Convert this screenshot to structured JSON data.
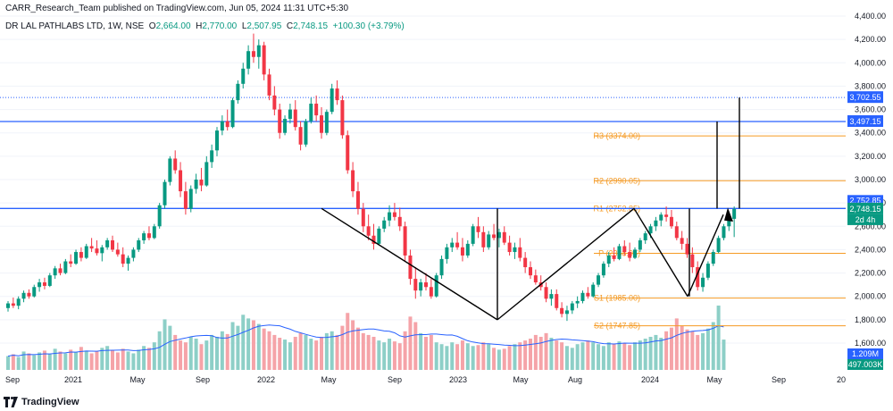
{
  "header": {
    "published": "CARR_Research_Team published on TradingView.com, Jun 05, 2024 11:31 UTC+5:30",
    "symbol": "DR LAL PATHLABS LTD, 1W, NSE",
    "o_label": "O",
    "o_value": "2,664.00",
    "h_label": "H",
    "h_value": "2,770.00",
    "l_label": "L",
    "l_value": "2,507.95",
    "c_label": "C",
    "c_value": "2,748.15",
    "change": "+100.30 (+3.79%)"
  },
  "footer": {
    "brand": "TradingView"
  },
  "colors": {
    "up": "#089981",
    "down": "#f23645",
    "blue": "#2962ff",
    "orange": "#f59a23",
    "volUp": "#8dcfc7",
    "volDown": "#f5a3a8"
  },
  "chart_data": {
    "type": "candlestick",
    "x_ticks": [
      "Sep",
      "2021",
      "May",
      "Sep",
      "2022",
      "May",
      "Sep",
      "2023",
      "May",
      "Aug",
      "2024",
      "May",
      "Sep",
      "20"
    ],
    "y_ticks": [
      4400,
      4200,
      4000,
      3800,
      3600,
      3400,
      3200,
      3000,
      2800,
      2600,
      2400,
      2200,
      2000,
      1800,
      1600
    ],
    "y_tick_labels": [
      "4,400.00",
      "4,200.00",
      "4,000.00",
      "3,800.00",
      "3,600.00",
      "3,400.00",
      "3,200.00",
      "3,000.00",
      "2,800.00",
      "2,600.00",
      "2,400.00",
      "2,200.00",
      "2,000.00",
      "1,800.00",
      "1,600.00"
    ],
    "ylim": [
      1400,
      4420
    ],
    "horizontal_lines": [
      {
        "price": 3497.15,
        "label": "3,497.15",
        "style": "solid",
        "color": "#2962ff"
      },
      {
        "price": 2752.85,
        "label": "2,752.85",
        "style": "solid",
        "color": "#2962ff"
      },
      {
        "price": 3702.55,
        "label": "3,702.55",
        "style": "dotted",
        "color": "#2962ff"
      }
    ],
    "pivots": [
      {
        "name": "R3",
        "price": 3374.0,
        "label": "R3 (3374.00)"
      },
      {
        "name": "R2",
        "price": 2990.05,
        "label": "R2 (2990.05)"
      },
      {
        "name": "R1",
        "price": 2752.85,
        "label": "R1 (2752.85)"
      },
      {
        "name": "P",
        "price": 2368.95,
        "label": "P (2368.95)"
      },
      {
        "name": "S1",
        "price": 1985.0,
        "label": "S1 (1985.00)"
      },
      {
        "name": "S2",
        "price": 1747.85,
        "label": "S2 (1747.85)"
      }
    ],
    "last_price": {
      "value": 2748.15,
      "label": "2,748.15",
      "countdown": "2d 4h"
    },
    "volume_labels": [
      {
        "label": "1.209M"
      },
      {
        "label": "497.003K"
      }
    ],
    "ohlc": [
      [
        1900,
        1960,
        1870,
        1940
      ],
      [
        1940,
        1990,
        1900,
        1920
      ],
      [
        1920,
        2000,
        1890,
        1980
      ],
      [
        1980,
        2050,
        1950,
        2030
      ],
      [
        2030,
        2060,
        1980,
        2000
      ],
      [
        2000,
        2100,
        1990,
        2080
      ],
      [
        2080,
        2150,
        2040,
        2120
      ],
      [
        2120,
        2160,
        2060,
        2090
      ],
      [
        2090,
        2200,
        2080,
        2180
      ],
      [
        2180,
        2260,
        2150,
        2240
      ],
      [
        2240,
        2280,
        2180,
        2200
      ],
      [
        2200,
        2320,
        2190,
        2300
      ],
      [
        2300,
        2360,
        2250,
        2280
      ],
      [
        2280,
        2400,
        2270,
        2380
      ],
      [
        2380,
        2420,
        2300,
        2330
      ],
      [
        2330,
        2450,
        2320,
        2430
      ],
      [
        2430,
        2500,
        2380,
        2410
      ],
      [
        2410,
        2480,
        2350,
        2370
      ],
      [
        2370,
        2440,
        2300,
        2420
      ],
      [
        2420,
        2500,
        2400,
        2480
      ],
      [
        2480,
        2520,
        2380,
        2400
      ],
      [
        2400,
        2460,
        2340,
        2360
      ],
      [
        2360,
        2420,
        2250,
        2280
      ],
      [
        2280,
        2350,
        2220,
        2330
      ],
      [
        2330,
        2420,
        2300,
        2400
      ],
      [
        2400,
        2500,
        2380,
        2480
      ],
      [
        2480,
        2560,
        2450,
        2540
      ],
      [
        2540,
        2600,
        2480,
        2500
      ],
      [
        2500,
        2620,
        2490,
        2600
      ],
      [
        2600,
        2800,
        2580,
        2780
      ],
      [
        2780,
        3000,
        2750,
        2980
      ],
      [
        2980,
        3200,
        2950,
        3180
      ],
      [
        3180,
        3250,
        3050,
        3080
      ],
      [
        3080,
        3150,
        2850,
        2900
      ],
      [
        2900,
        2980,
        2700,
        2750
      ],
      [
        2750,
        2950,
        2720,
        2920
      ],
      [
        2920,
        3050,
        2880,
        3000
      ],
      [
        3000,
        3100,
        2900,
        2950
      ],
      [
        2950,
        3200,
        2940,
        3150
      ],
      [
        3150,
        3300,
        3100,
        3250
      ],
      [
        3250,
        3450,
        3200,
        3420
      ],
      [
        3420,
        3550,
        3380,
        3500
      ],
      [
        3500,
        3600,
        3420,
        3450
      ],
      [
        3450,
        3700,
        3440,
        3680
      ],
      [
        3680,
        3850,
        3650,
        3820
      ],
      [
        3820,
        4000,
        3780,
        3950
      ],
      [
        3950,
        4150,
        3900,
        4100
      ],
      [
        4100,
        4250,
        4000,
        4050
      ],
      [
        4050,
        4200,
        3950,
        4150
      ],
      [
        4150,
        4180,
        3850,
        3900
      ],
      [
        3900,
        3950,
        3680,
        3720
      ],
      [
        3720,
        3800,
        3550,
        3600
      ],
      [
        3600,
        3650,
        3350,
        3400
      ],
      [
        3400,
        3550,
        3380,
        3520
      ],
      [
        3520,
        3650,
        3480,
        3600
      ],
      [
        3600,
        3680,
        3420,
        3450
      ],
      [
        3450,
        3500,
        3250,
        3300
      ],
      [
        3300,
        3520,
        3280,
        3500
      ],
      [
        3500,
        3700,
        3480,
        3650
      ],
      [
        3650,
        3720,
        3500,
        3550
      ],
      [
        3550,
        3620,
        3350,
        3400
      ],
      [
        3400,
        3600,
        3380,
        3580
      ],
      [
        3580,
        3820,
        3560,
        3780
      ],
      [
        3780,
        3850,
        3640,
        3680
      ],
      [
        3680,
        3720,
        3350,
        3380
      ],
      [
        3380,
        3420,
        3050,
        3080
      ],
      [
        3080,
        3150,
        2850,
        2900
      ],
      [
        2900,
        2980,
        2700,
        2750
      ],
      [
        2750,
        2800,
        2550,
        2600
      ],
      [
        2600,
        2700,
        2480,
        2520
      ],
      [
        2520,
        2620,
        2400,
        2450
      ],
      [
        2450,
        2600,
        2440,
        2580
      ],
      [
        2580,
        2680,
        2550,
        2650
      ],
      [
        2650,
        2780,
        2600,
        2720
      ],
      [
        2720,
        2800,
        2650,
        2680
      ],
      [
        2680,
        2760,
        2560,
        2600
      ],
      [
        2600,
        2640,
        2300,
        2350
      ],
      [
        2350,
        2400,
        2100,
        2150
      ],
      [
        2150,
        2250,
        1980,
        2050
      ],
      [
        2050,
        2150,
        2000,
        2120
      ],
      [
        2120,
        2200,
        2050,
        2080
      ],
      [
        2080,
        2150,
        1980,
        2000
      ],
      [
        2000,
        2200,
        1990,
        2180
      ],
      [
        2180,
        2350,
        2150,
        2320
      ],
      [
        2320,
        2450,
        2280,
        2420
      ],
      [
        2420,
        2500,
        2380,
        2460
      ],
      [
        2460,
        2550,
        2400,
        2420
      ],
      [
        2420,
        2500,
        2300,
        2350
      ],
      [
        2350,
        2480,
        2330,
        2450
      ],
      [
        2450,
        2620,
        2430,
        2600
      ],
      [
        2600,
        2680,
        2500,
        2550
      ],
      [
        2550,
        2600,
        2380,
        2420
      ],
      [
        2420,
        2560,
        2400,
        2530
      ],
      [
        2530,
        2620,
        2480,
        2500
      ],
      [
        2500,
        2580,
        2420,
        2550
      ],
      [
        2550,
        2600,
        2440,
        2460
      ],
      [
        2460,
        2520,
        2350,
        2380
      ],
      [
        2380,
        2460,
        2320,
        2420
      ],
      [
        2420,
        2500,
        2300,
        2330
      ],
      [
        2330,
        2380,
        2200,
        2250
      ],
      [
        2250,
        2300,
        2150,
        2180
      ],
      [
        2180,
        2230,
        2100,
        2120
      ],
      [
        2120,
        2180,
        2050,
        2080
      ],
      [
        2080,
        2120,
        1950,
        1980
      ],
      [
        1980,
        2060,
        1920,
        2020
      ],
      [
        2020,
        2060,
        1880,
        1900
      ],
      [
        1900,
        1950,
        1820,
        1850
      ],
      [
        1850,
        1920,
        1790,
        1880
      ],
      [
        1880,
        1960,
        1850,
        1940
      ],
      [
        1940,
        2000,
        1900,
        1960
      ],
      [
        1960,
        2050,
        1940,
        2030
      ],
      [
        2030,
        2080,
        1980,
        2000
      ],
      [
        2000,
        2120,
        1990,
        2100
      ],
      [
        2100,
        2200,
        2080,
        2180
      ],
      [
        2180,
        2300,
        2160,
        2280
      ],
      [
        2280,
        2380,
        2250,
        2350
      ],
      [
        2350,
        2420,
        2300,
        2320
      ],
      [
        2320,
        2450,
        2310,
        2430
      ],
      [
        2430,
        2480,
        2350,
        2380
      ],
      [
        2380,
        2460,
        2300,
        2330
      ],
      [
        2330,
        2420,
        2320,
        2400
      ],
      [
        2400,
        2500,
        2380,
        2480
      ],
      [
        2480,
        2560,
        2450,
        2540
      ],
      [
        2540,
        2620,
        2500,
        2600
      ],
      [
        2600,
        2680,
        2560,
        2650
      ],
      [
        2650,
        2720,
        2600,
        2700
      ],
      [
        2700,
        2770,
        2640,
        2680
      ],
      [
        2680,
        2740,
        2580,
        2600
      ],
      [
        2600,
        2640,
        2480,
        2500
      ],
      [
        2500,
        2560,
        2400,
        2450
      ],
      [
        2450,
        2500,
        2330,
        2360
      ],
      [
        2360,
        2420,
        2200,
        2250
      ],
      [
        2250,
        2300,
        2050,
        2080
      ],
      [
        2080,
        2200,
        2040,
        2160
      ],
      [
        2160,
        2300,
        2140,
        2280
      ],
      [
        2280,
        2400,
        2260,
        2380
      ],
      [
        2380,
        2520,
        2370,
        2500
      ],
      [
        2500,
        2620,
        2480,
        2600
      ],
      [
        2600,
        2680,
        2560,
        2650
      ],
      [
        2664,
        2770,
        2507.95,
        2748.15
      ]
    ],
    "volume": [
      150,
      170,
      140,
      200,
      180,
      160,
      190,
      210,
      170,
      230,
      200,
      180,
      220,
      190,
      250,
      210,
      180,
      200,
      240,
      260,
      210,
      190,
      230,
      200,
      180,
      220,
      260,
      240,
      300,
      420,
      550,
      480,
      380,
      320,
      300,
      360,
      340,
      280,
      320,
      380,
      360,
      420,
      390,
      520,
      480,
      600,
      560,
      540,
      500,
      450,
      420,
      380,
      350,
      330,
      300,
      360,
      400,
      380,
      340,
      320,
      360,
      400,
      420,
      380,
      480,
      620,
      540,
      460,
      400,
      380,
      360,
      320,
      300,
      340,
      310,
      290,
      420,
      580,
      520,
      400,
      360,
      380,
      300,
      280,
      260,
      300,
      280,
      320,
      290,
      260,
      270,
      300,
      280,
      240,
      220,
      230,
      260,
      280,
      300,
      320,
      340,
      380,
      360,
      400,
      350,
      320,
      300,
      260,
      240,
      280,
      300,
      320,
      300,
      280,
      260,
      300,
      280,
      310,
      290,
      270,
      300,
      320,
      340,
      360,
      380,
      350,
      420,
      460,
      560,
      480,
      440,
      420,
      380,
      400,
      450,
      520,
      700,
      330
    ]
  }
}
